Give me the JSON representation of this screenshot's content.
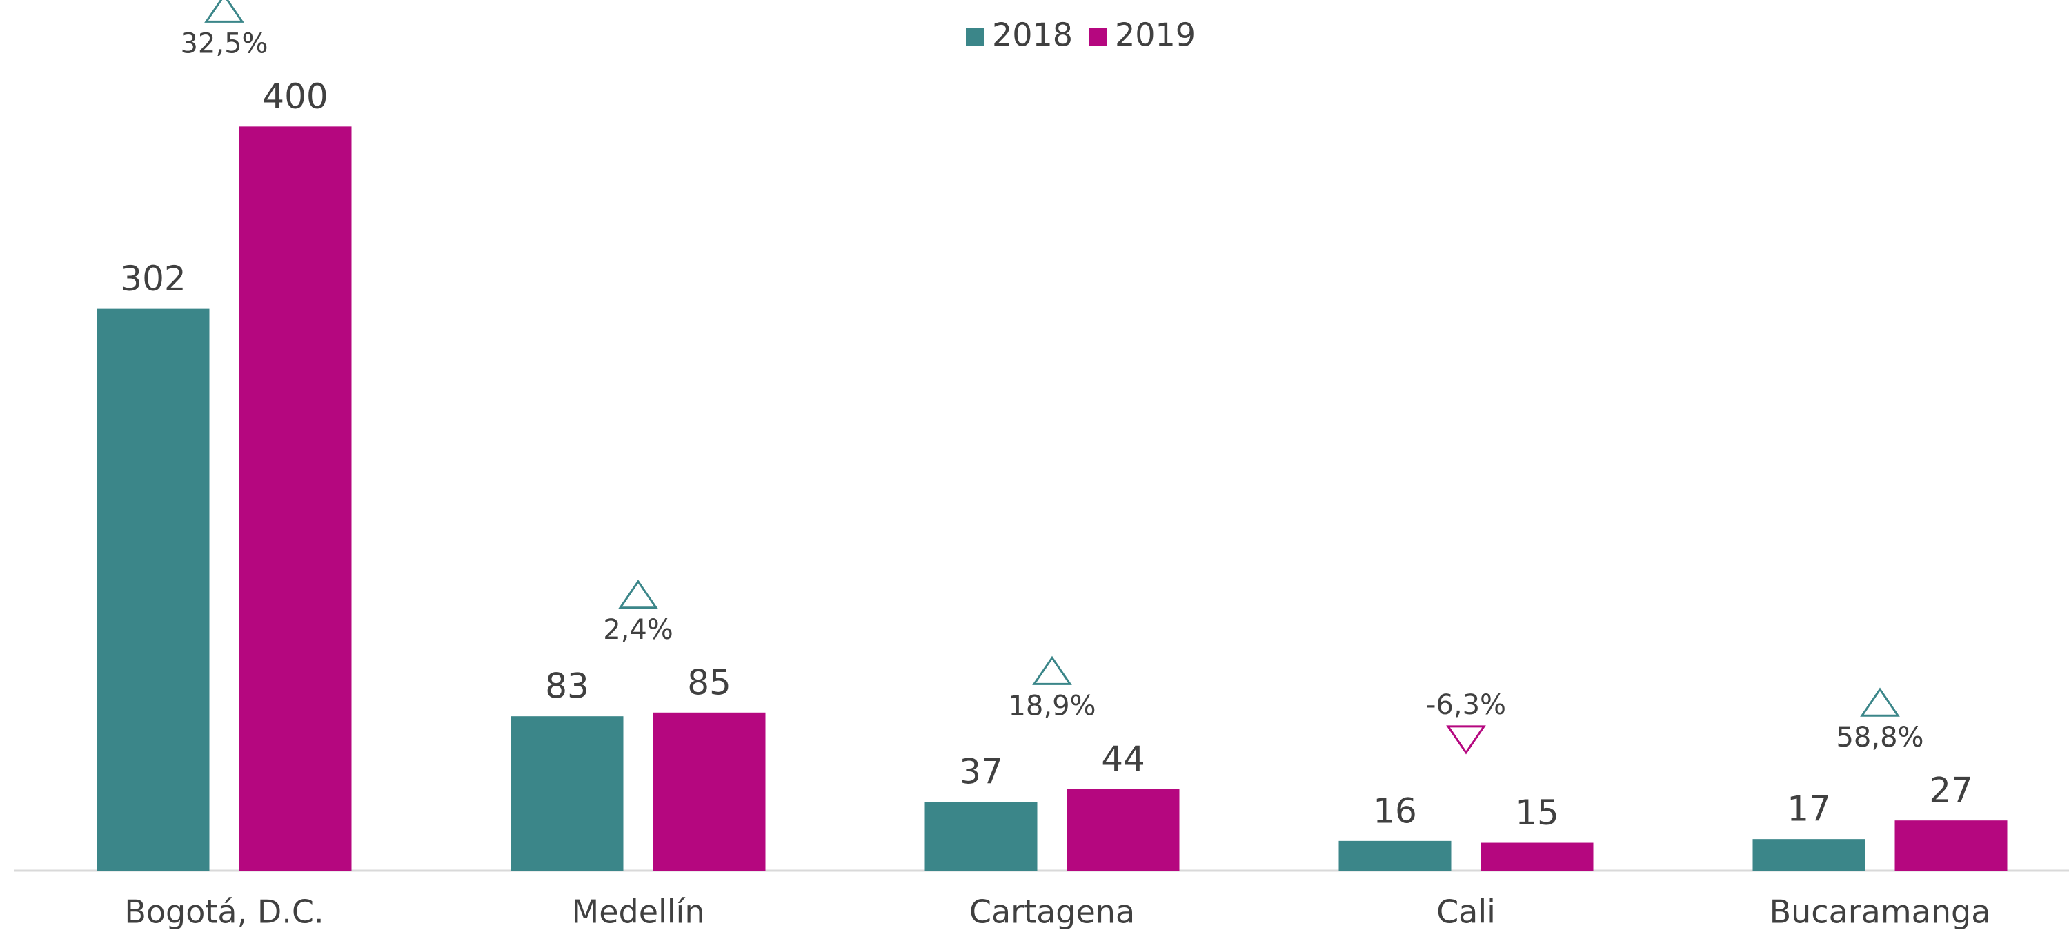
{
  "chart_data": {
    "type": "bar",
    "categories": [
      "Bogotá, D.C.",
      "Medellín",
      "Cartagena",
      "Cali",
      "Bucaramanga"
    ],
    "series": [
      {
        "name": "2018",
        "color": "#3b8689",
        "values": [
          302,
          83,
          37,
          16,
          17
        ]
      },
      {
        "name": "2019",
        "color": "#b5077f",
        "values": [
          400,
          85,
          44,
          15,
          27
        ]
      }
    ],
    "annotations": [
      "32,5%",
      "2,4%",
      "18,9%",
      "-6,3%",
      "58,8%"
    ],
    "ylim": [
      0,
      468
    ],
    "legend": "top"
  }
}
